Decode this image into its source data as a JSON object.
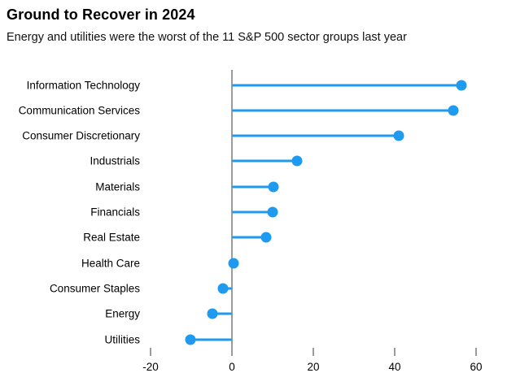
{
  "header": {
    "title": "Ground to Recover in 2024",
    "subtitle": "Energy and utilities were the worst of the 11 S&P 500 sector groups last year"
  },
  "colors": {
    "accent_blue": "#1e9bf0",
    "axis_gray": "#9b9b9b",
    "text_black": "#000000",
    "background": "#ffffff"
  },
  "chart_data": {
    "type": "bar",
    "subtype": "lollipop-horizontal",
    "title": "Ground to Recover in 2024",
    "subtitle": "Energy and utilities were the worst of the 11 S&P 500 sector groups last year",
    "categories": [
      "Information Technology",
      "Communication Services",
      "Consumer Discretionary",
      "Industrials",
      "Materials",
      "Financials",
      "Real Estate",
      "Health Care",
      "Consumer Staples",
      "Energy",
      "Utilities"
    ],
    "values": [
      56.4,
      54.4,
      41.0,
      16.0,
      10.2,
      9.9,
      8.3,
      0.3,
      -2.2,
      -4.8,
      -10.2
    ],
    "xlabel": "",
    "ylabel": "",
    "x_ticks": [
      -20,
      0,
      20,
      40,
      60
    ],
    "xlim": [
      -25,
      66
    ],
    "grid": false,
    "legend": false,
    "marker": "circle",
    "zero_baseline_axis": true
  }
}
